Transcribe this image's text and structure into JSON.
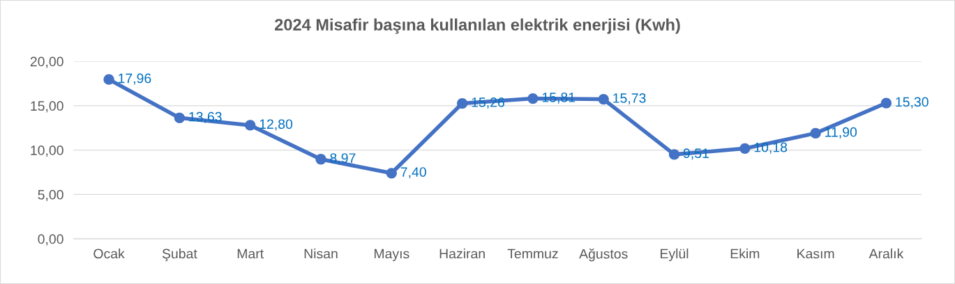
{
  "chart_data": {
    "type": "line",
    "title": "2024 Misafir başına kullanılan elektrik enerjisi (Kwh)",
    "categories": [
      "Ocak",
      "Şubat",
      "Mart",
      "Nisan",
      "Mayıs",
      "Haziran",
      "Temmuz",
      "Ağustos",
      "Eylül",
      "Ekim",
      "Kasım",
      "Aralık"
    ],
    "series": [
      {
        "color": "#4472c4",
        "values": [
          17.96,
          13.63,
          12.8,
          8.97,
          7.4,
          15.26,
          15.81,
          15.73,
          9.51,
          10.18,
          11.9,
          15.3
        ],
        "value_labels": [
          "17,96",
          "13,63",
          "12,80",
          "8,97",
          "7,40",
          "15,26",
          "15,81",
          "15,73",
          "9,51",
          "10,18",
          "11,90",
          "15,30"
        ]
      }
    ],
    "ylim": [
      0,
      20
    ],
    "yticks": [
      {
        "value": 0,
        "label": "0,00"
      },
      {
        "value": 5,
        "label": "5,00"
      },
      {
        "value": 10,
        "label": "10,00"
      },
      {
        "value": 15,
        "label": "15,00"
      },
      {
        "value": 20,
        "label": "20,00"
      }
    ],
    "grid": "y",
    "marker": "circle",
    "line_style": "solid",
    "legend": false
  }
}
